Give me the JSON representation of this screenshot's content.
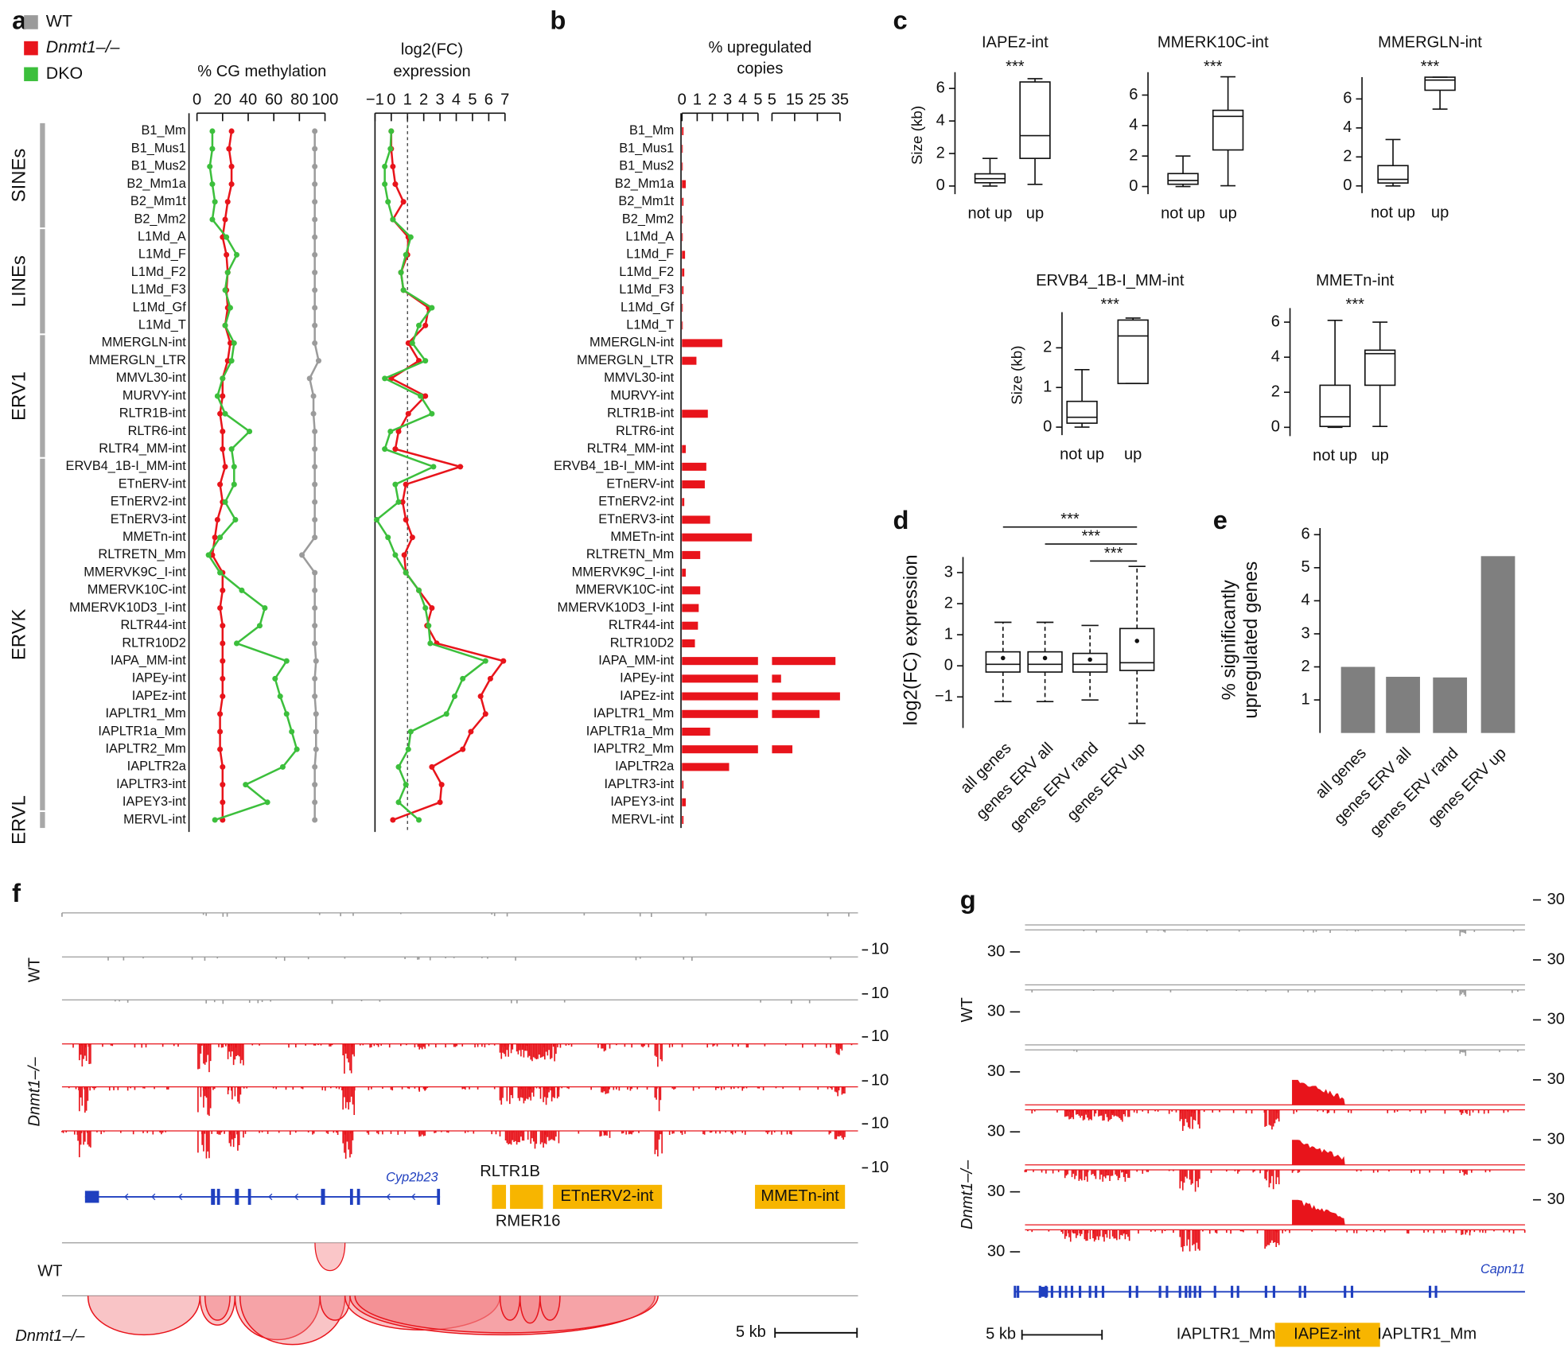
{
  "panel_labels": [
    "a",
    "b",
    "c",
    "d",
    "e",
    "f",
    "g"
  ],
  "chart_data": [
    {
      "type": "line",
      "orientation": "horizontal",
      "title": "% CG methylation",
      "categories": [
        "B1_Mm",
        "B1_Mus1",
        "B1_Mus2",
        "B2_Mm1a",
        "B2_Mm1t",
        "B2_Mm2",
        "L1Md_A",
        "L1Md_F",
        "L1Md_F2",
        "L1Md_F3",
        "L1Md_Gf",
        "L1Md_T",
        "MMERGLN-int",
        "MMERGLN_LTR",
        "MMVL30-int",
        "MURVY-int",
        "RLTR1B-int",
        "RLTR6-int",
        "RLTR4_MM-int",
        "ERVB4_1B-I_MM-int",
        "ETnERV-int",
        "ETnERV2-int",
        "ETnERV3-int",
        "MMETn-int",
        "RLTRETN_Mm",
        "MMERVK9C_I-int",
        "MMERVK10C-int",
        "MMERVK10D3_I-int",
        "RLTR44-int",
        "RLTR10D2",
        "IAPA_MM-int",
        "IAPEy-int",
        "IAPEz-int",
        "IAPLTR1_Mm",
        "IAPLTR1a_Mm",
        "IAPLTR2_Mm",
        "IAPLTR2a",
        "IAPLTR3-int",
        "IAPEY3-int",
        "MERVL-int"
      ],
      "groups": [
        {
          "label": "SINEs",
          "first": "B1_Mm",
          "last": "B2_Mm2"
        },
        {
          "label": "LINEs",
          "first": "L1Md_A",
          "last": "L1Md_T"
        },
        {
          "label": "ERV1",
          "first": "MMERGLN-int",
          "last": "RLTR4_MM-int"
        },
        {
          "label": "ERVK",
          "first": "ERVB4_1B-I_MM-int",
          "last": "IAPEY3-int"
        },
        {
          "label": "ERVL",
          "first": "MERVL-int",
          "last": "MERVL-int"
        }
      ],
      "xlim": [
        0,
        100
      ],
      "xticks": [
        0,
        20,
        40,
        60,
        80,
        100
      ],
      "legend": "top-left",
      "series": [
        {
          "name": "WT",
          "color": "#9b9b9b",
          "values": [
            92,
            92,
            92,
            92,
            92,
            92,
            92,
            92,
            92,
            92,
            92,
            92,
            92,
            95,
            88,
            91,
            91,
            92,
            92,
            92,
            92,
            92,
            92,
            92,
            82,
            92,
            92,
            92,
            92,
            92,
            93,
            92,
            92,
            93,
            93,
            93,
            92,
            92,
            92,
            92
          ]
        },
        {
          "name": "Dnmt1–/–",
          "name_style": "italic",
          "color": "#e8141b",
          "values": [
            27,
            25,
            27,
            27,
            24,
            22,
            20,
            23,
            24,
            23,
            24,
            22,
            26,
            24,
            20,
            20,
            18,
            20,
            20,
            22,
            18,
            20,
            16,
            14,
            12,
            20,
            20,
            18,
            20,
            20,
            20,
            20,
            20,
            18,
            18,
            18,
            20,
            20,
            20,
            20
          ]
        },
        {
          "name": "DKO",
          "color": "#3cbf3c",
          "values": [
            12,
            12,
            10,
            12,
            14,
            12,
            23,
            31,
            24,
            22,
            26,
            22,
            29,
            27,
            20,
            16,
            22,
            41,
            27,
            29,
            29,
            22,
            30,
            18,
            9,
            18,
            35,
            53,
            49,
            31,
            70,
            61,
            65,
            70,
            74,
            78,
            67,
            38,
            55,
            14
          ]
        }
      ]
    },
    {
      "type": "line",
      "orientation": "horizontal",
      "title": [
        "log2(FC)",
        "expression"
      ],
      "xlim": [
        -1,
        7
      ],
      "xticks": [
        {
          "value": -1,
          "label": "−1"
        },
        0,
        1,
        2,
        3,
        4,
        5,
        6,
        7
      ],
      "reference_line": 1,
      "series": [
        {
          "color": "#e8141b",
          "values": [
            0,
            0,
            0.1,
            0.25,
            0.75,
            0.1,
            1.05,
            1.0,
            0.6,
            0.75,
            2.3,
            2.1,
            1.05,
            1.7,
            0,
            2.1,
            1.05,
            0.45,
            0.25,
            4.25,
            0.9,
            0.7,
            0.9,
            1.3,
            0.8,
            0.9,
            1.7,
            2.5,
            2.2,
            2.8,
            6.9,
            6.1,
            5.5,
            5.8,
            4.9,
            4.4,
            2.5,
            3.1,
            3.0,
            0.1
          ]
        },
        {
          "color": "#3cbf3c",
          "values": [
            0,
            -0.05,
            -0.4,
            -0.4,
            -0.2,
            0.1,
            1.2,
            0.9,
            0.6,
            0.75,
            2.5,
            1.7,
            1.3,
            2.1,
            -0.4,
            1.8,
            2.5,
            -0.05,
            -0.4,
            2.6,
            0.25,
            0.45,
            -0.9,
            -0.2,
            0.25,
            0.9,
            1.7,
            2.1,
            2.3,
            2.4,
            5.8,
            4.4,
            3.9,
            3.4,
            1.2,
            1.05,
            0.45,
            0.9,
            0.45,
            1.7
          ]
        }
      ]
    },
    {
      "type": "bar",
      "orientation": "horizontal",
      "title": [
        "% upregulated",
        "copies"
      ],
      "categories": [
        "B1_Mm",
        "B1_Mus1",
        "B1_Mus2",
        "B2_Mm1a",
        "B2_Mm1t",
        "B2_Mm2",
        "L1Md_A",
        "L1Md_F",
        "L1Md_F2",
        "L1Md_F3",
        "L1Md_Gf",
        "L1Md_T",
        "MMERGLN-int",
        "MMERGLN_LTR",
        "MMVL30-int",
        "MURVY-int",
        "RLTR1B-int",
        "RLTR6-int",
        "RLTR4_MM-int",
        "ERVB4_1B-I_MM-int",
        "ETnERV-int",
        "ETnERV2-int",
        "ETnERV3-int",
        "MMETn-int",
        "RLTRETN_Mm",
        "MMERVK9C_I-int",
        "MMERVK10C-int",
        "MMERVK10D3_I-int",
        "RLTR44-int",
        "RLTR10D2",
        "IAPA_MM-int",
        "IAPEy-int",
        "IAPEz-int",
        "IAPLTR1_Mm",
        "IAPLTR1a_Mm",
        "IAPLTR2_Mm",
        "IAPLTR2a",
        "IAPLTR3-int",
        "IAPEY3-int",
        "MERVL-int"
      ],
      "values": [
        0.1,
        0.05,
        0.05,
        0.25,
        0.1,
        0.05,
        0.05,
        0.2,
        0.15,
        0.1,
        0.05,
        0.05,
        2.65,
        0.95,
        0,
        0,
        1.7,
        0,
        0.25,
        1.6,
        1.5,
        0.15,
        1.85,
        4.6,
        1.2,
        0.25,
        1.2,
        1.1,
        1.05,
        0.85,
        33,
        9,
        35,
        26,
        1.85,
        14,
        3.1,
        0.1,
        0.25,
        0.1
      ],
      "color": "#e8141b",
      "xlim": [
        0,
        5
      ],
      "xticks": [
        0,
        1,
        2,
        3,
        4,
        5
      ],
      "x2lim": [
        5,
        35
      ],
      "x2ticks": [
        5,
        15,
        25,
        35
      ]
    },
    {
      "type": "box",
      "title": "IAPEz-int",
      "annotation": "***",
      "ylabel": "Size (kb)",
      "categories": [
        "not up",
        "up"
      ],
      "boxes": [
        {
          "whisker_low": 0.0,
          "q1": 0.2,
          "median": 0.45,
          "q3": 0.75,
          "whisker_high": 1.7
        },
        {
          "whisker_low": 0.1,
          "q1": 1.7,
          "median": 3.1,
          "q3": 6.4,
          "whisker_high": 6.6
        }
      ],
      "ylim": [
        -0.5,
        7
      ],
      "yticks": [
        0,
        2,
        4,
        6
      ]
    },
    {
      "type": "box",
      "title": "MMERK10C-int",
      "annotation": "***",
      "categories": [
        "not up",
        "up"
      ],
      "boxes": [
        {
          "whisker_low": 0.0,
          "q1": 0.15,
          "median": 0.4,
          "q3": 0.85,
          "whisker_high": 2.0
        },
        {
          "whisker_low": 0.05,
          "q1": 2.4,
          "median": 4.6,
          "q3": 5.0,
          "whisker_high": 7.2
        }
      ],
      "ylim": [
        -0.5,
        7.5
      ],
      "yticks": [
        0,
        2,
        4,
        6
      ]
    },
    {
      "type": "box",
      "title": "MMERGLN-int",
      "annotation": "***",
      "categories": [
        "not up",
        "up"
      ],
      "boxes": [
        {
          "whisker_low": 0.0,
          "q1": 0.2,
          "median": 0.45,
          "q3": 1.4,
          "whisker_high": 3.2
        },
        {
          "whisker_low": 5.3,
          "q1": 6.6,
          "median": 7.3,
          "q3": 7.5,
          "whisker_high": 7.5
        }
      ],
      "ylim": [
        -0.5,
        7.5
      ],
      "yticks": [
        0,
        2,
        4,
        6
      ]
    },
    {
      "type": "box",
      "title": "ERVB4_1B-I_MM-int",
      "annotation": "***",
      "ylabel": "Size (kb)",
      "categories": [
        "not up",
        "up"
      ],
      "boxes": [
        {
          "whisker_low": 0.0,
          "q1": 0.1,
          "median": 0.25,
          "q3": 0.65,
          "whisker_high": 1.45
        },
        {
          "whisker_low": 1.1,
          "q1": 1.1,
          "median": 2.3,
          "q3": 2.7,
          "whisker_high": 2.75
        }
      ],
      "ylim": [
        -0.2,
        2.9
      ],
      "yticks": [
        0,
        1,
        2
      ]
    },
    {
      "type": "box",
      "title": "MMETn-int",
      "annotation": "***",
      "categories": [
        "not up",
        "up"
      ],
      "boxes": [
        {
          "whisker_low": 0.0,
          "q1": 0.05,
          "median": 0.6,
          "q3": 2.4,
          "whisker_high": 6.1
        },
        {
          "whisker_low": 0.05,
          "q1": 2.4,
          "median": 4.2,
          "q3": 4.4,
          "whisker_high": 6.0
        }
      ],
      "ylim": [
        -0.5,
        6.8
      ],
      "yticks": [
        0,
        2,
        4,
        6
      ]
    },
    {
      "type": "box",
      "ylabel": "log2(FC) expression",
      "categories": [
        "all genes",
        "genes ERV all",
        "genes ERV rand",
        "genes ERV up"
      ],
      "boxes": [
        {
          "whisker_low": -1.15,
          "q1": -0.2,
          "median": 0.05,
          "q3": 0.45,
          "whisker_high": 1.4,
          "mean": 0.25
        },
        {
          "whisker_low": -1.15,
          "q1": -0.2,
          "median": 0.05,
          "q3": 0.45,
          "whisker_high": 1.4,
          "mean": 0.25
        },
        {
          "whisker_low": -1.1,
          "q1": -0.2,
          "median": 0.05,
          "q3": 0.4,
          "whisker_high": 1.3,
          "mean": 0.2
        },
        {
          "whisker_low": -1.85,
          "q1": -0.15,
          "median": 0.1,
          "q3": 1.2,
          "whisker_high": 3.2,
          "mean": 0.8
        }
      ],
      "whisker_style": "dashed",
      "ylim": [
        -2,
        3.5
      ],
      "yticks": [
        {
          "value": -1,
          "label": "−1"
        },
        0,
        1,
        2,
        3
      ],
      "comparisons": [
        {
          "groups": [
            "all genes",
            "genes ERV up"
          ],
          "label": "***"
        },
        {
          "groups": [
            "genes ERV all",
            "genes ERV up"
          ],
          "label": "***"
        },
        {
          "groups": [
            "genes ERV rand",
            "genes ERV up"
          ],
          "label": "***"
        }
      ]
    },
    {
      "type": "bar",
      "ylabel": [
        "% significantly",
        "upregulated genes"
      ],
      "categories": [
        "all genes",
        "genes ERV all",
        "genes ERV rand",
        "genes ERV up"
      ],
      "values": [
        2.0,
        1.7,
        1.68,
        5.35
      ],
      "color": "#7f7f7f",
      "ylim": [
        0,
        6.2
      ],
      "yticks": [
        1,
        2,
        3,
        4,
        5,
        6
      ]
    }
  ],
  "genome_browser": [
    {
      "samples": [
        "WT",
        "Dnmt1–/–"
      ],
      "track_scale": 10,
      "gene": "Cyp2b23",
      "elements": [
        "RLTR1B",
        "RMER16",
        "ETnERV2-int",
        "MMETn-int"
      ],
      "junction_samples": [
        "WT",
        "Dnmt1–/–"
      ],
      "scale_bar": "5 kb"
    },
    {
      "samples": [
        "WT",
        "Dnmt1–/–"
      ],
      "track_scale": 30,
      "gene": "Capn11",
      "elements": [
        "IAPLTR1_Mm",
        "IAPEz-int",
        "IAPLTR1_Mm"
      ],
      "scale_bar": "5 kb"
    }
  ]
}
